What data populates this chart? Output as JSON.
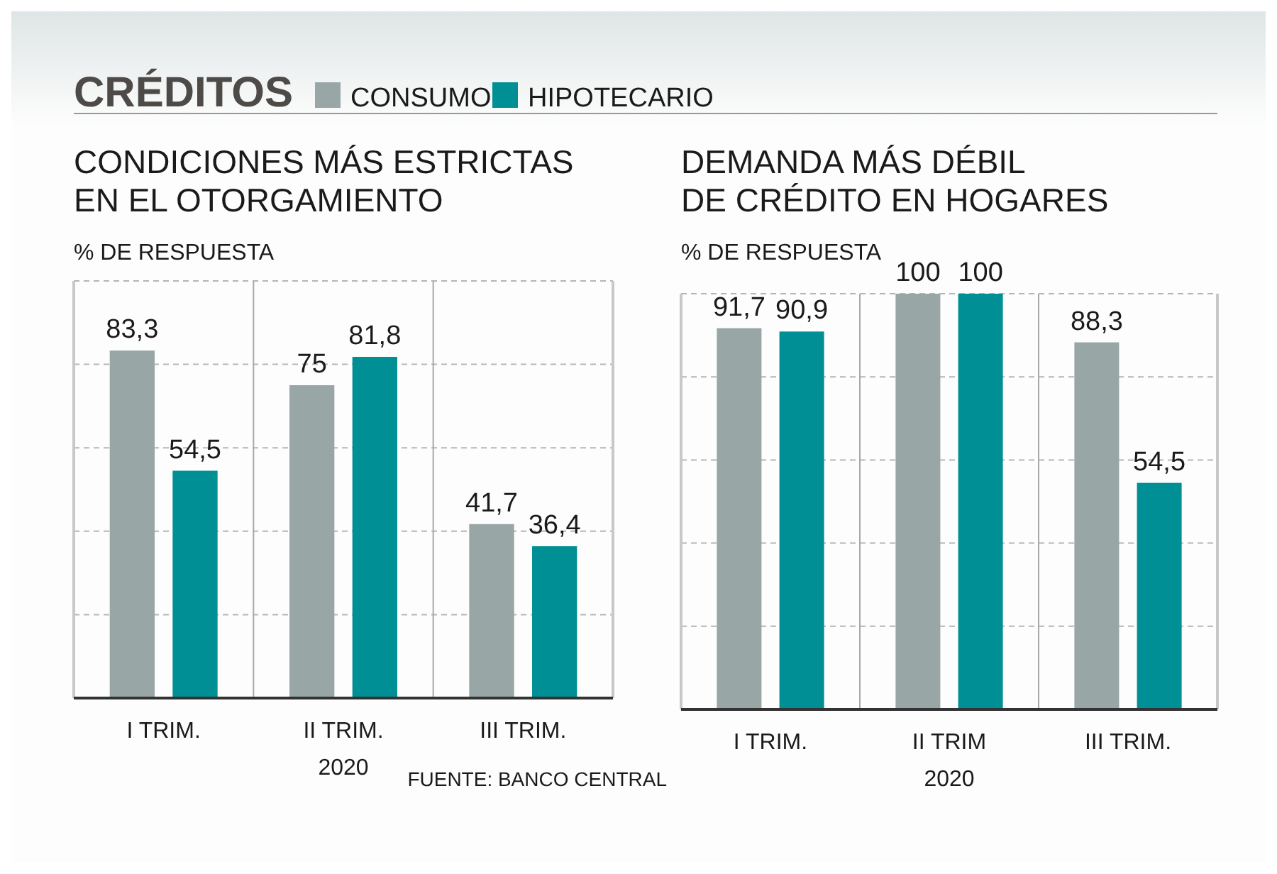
{
  "chart_data": [
    {
      "type": "bar",
      "title": "CRÉDITOS",
      "subtitle": "CONDICIONES MÁS ESTRICTAS\nEN EL OTORGAMIENTO",
      "ylabel": "% DE RESPUESTA",
      "xlabel": "2020",
      "categories": [
        "I TRIM.",
        "II TRIM.",
        "III TRIM."
      ],
      "series": [
        {
          "name": "CONSUMO",
          "color": "#98a6a6",
          "values": [
            83.3,
            75,
            41.7
          ],
          "value_labels": [
            "83,3",
            "75",
            "41,7"
          ]
        },
        {
          "name": "HIPOTECARIO",
          "color": "#008f94",
          "values": [
            54.5,
            81.8,
            36.4
          ],
          "value_labels": [
            "54,5",
            "81,8",
            "36,4"
          ]
        }
      ],
      "ylim": [
        0,
        100
      ],
      "yticks": [
        {
          "value": 0,
          "label": null
        },
        {
          "value": 20,
          "label": null
        },
        {
          "value": 40,
          "label": null
        },
        {
          "value": 60,
          "label": null
        },
        {
          "value": 80,
          "label": null
        },
        {
          "value": 100,
          "label": null
        }
      ],
      "tick_labels": "x",
      "grid": true,
      "legend": "top right"
    },
    {
      "type": "bar",
      "subtitle": "DEMANDA MÁS DÉBIL\nDE CRÉDITO EN HOGARES",
      "ylabel": "% DE RESPUESTA",
      "xlabel": "2020",
      "categories": [
        "I TRIM.",
        "II TRIM",
        "III TRIM."
      ],
      "series": [
        {
          "color": "#98a6a6",
          "values": [
            91.7,
            100,
            88.3
          ],
          "value_labels": [
            "91,7",
            "100",
            "88,3"
          ]
        },
        {
          "color": "#008f94",
          "values": [
            90.9,
            100,
            54.5
          ],
          "value_labels": [
            "90,9",
            "100",
            "54,5"
          ]
        }
      ],
      "ylim": [
        0,
        100
      ],
      "yticks": [
        {
          "value": 0,
          "label": null
        },
        {
          "value": 20,
          "label": null
        },
        {
          "value": 40,
          "label": null
        },
        {
          "value": 60,
          "label": null
        },
        {
          "value": 80,
          "label": null
        },
        {
          "value": 100,
          "label": null
        }
      ],
      "tick_labels": "x",
      "grid": true,
      "annotations": [
        "FUENTE: BANCO CENTRAL"
      ]
    }
  ]
}
